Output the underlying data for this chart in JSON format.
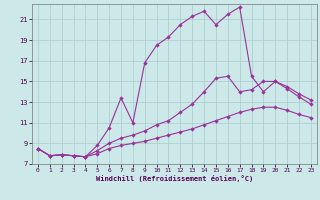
{
  "xlabel": "Windchill (Refroidissement éolien,°C)",
  "background_color": "#cce8e8",
  "grid_color": "#aacccc",
  "line_color": "#993399",
  "ylim": [
    7,
    22.5
  ],
  "xlim": [
    -0.5,
    23.5
  ],
  "yticks": [
    7,
    9,
    11,
    13,
    15,
    17,
    19,
    21
  ],
  "xticks": [
    0,
    1,
    2,
    3,
    4,
    5,
    6,
    7,
    8,
    9,
    10,
    11,
    12,
    13,
    14,
    15,
    16,
    17,
    18,
    19,
    20,
    21,
    22,
    23
  ],
  "line1_x": [
    0,
    1,
    2,
    3,
    4,
    5,
    6,
    7,
    8,
    9,
    10,
    11,
    12,
    13,
    14,
    15,
    16,
    17,
    18,
    19,
    20,
    21,
    22,
    23
  ],
  "line1_y": [
    8.5,
    7.8,
    7.9,
    7.8,
    7.7,
    8.0,
    8.5,
    8.8,
    9.0,
    9.2,
    9.5,
    9.8,
    10.1,
    10.4,
    10.8,
    11.2,
    11.6,
    12.0,
    12.3,
    12.5,
    12.5,
    12.2,
    11.8,
    11.5
  ],
  "line2_x": [
    0,
    1,
    2,
    3,
    4,
    5,
    6,
    7,
    8,
    9,
    10,
    11,
    12,
    13,
    14,
    15,
    16,
    17,
    18,
    19,
    20,
    21,
    22,
    23
  ],
  "line2_y": [
    8.5,
    7.8,
    7.9,
    7.8,
    7.7,
    8.3,
    9.0,
    9.5,
    9.8,
    10.2,
    10.8,
    11.2,
    12.0,
    12.8,
    14.0,
    15.3,
    15.5,
    14.0,
    14.2,
    15.0,
    15.0,
    14.3,
    13.5,
    12.8
  ],
  "line3_x": [
    0,
    1,
    2,
    3,
    4,
    5,
    6,
    7,
    8,
    9,
    10,
    11,
    12,
    13,
    14,
    15,
    16,
    17,
    18,
    19,
    20,
    21,
    22,
    23
  ],
  "line3_y": [
    8.5,
    7.8,
    7.9,
    7.8,
    7.7,
    8.8,
    10.5,
    13.4,
    11.0,
    16.8,
    18.5,
    19.3,
    20.5,
    21.3,
    21.8,
    20.5,
    21.5,
    22.2,
    15.5,
    14.0,
    15.0,
    14.5,
    13.8,
    13.2
  ]
}
